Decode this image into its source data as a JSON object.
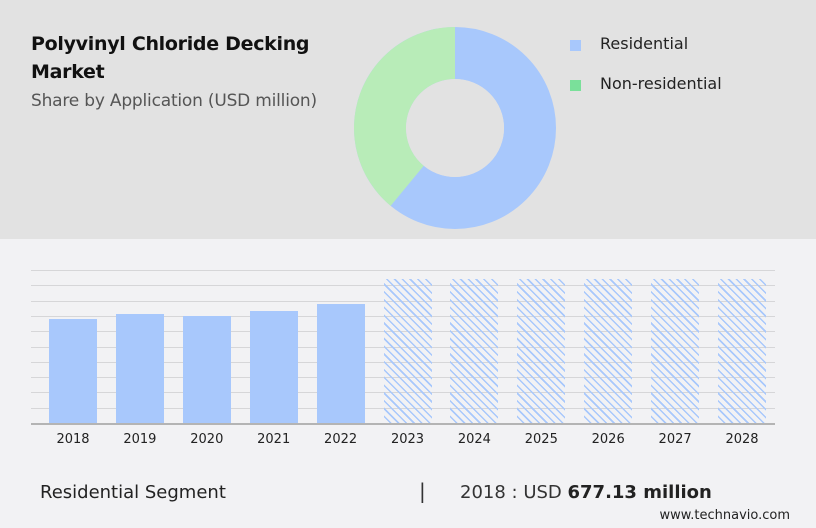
{
  "header": {
    "title_line1": "Polyvinyl Chloride Decking",
    "title_line2": "Market",
    "subtitle": "Share by Application (USD million)"
  },
  "colors": {
    "residential": "#a8c8fc",
    "non_residential_slice": "#b8ecb8",
    "non_residential_legend": "#7ae09a",
    "top_panel_bg": "#e2e2e2",
    "page_bg": "#f2f2f4"
  },
  "legend": {
    "items": [
      {
        "label": "Residential",
        "color": "#a8c8fc"
      },
      {
        "label": "Non-residential",
        "color": "#7ae09a"
      }
    ]
  },
  "footer": {
    "segment_label": "Residential Segment",
    "separator": "|",
    "value_prefix": "2018 : USD ",
    "value_bold": "677.13 million",
    "source": "www.technavio.com"
  },
  "chart_data": [
    {
      "type": "pie",
      "title": "Share by Application (USD million)",
      "variant": "donut",
      "categories": [
        "Residential",
        "Non-residential"
      ],
      "values": [
        61,
        39
      ],
      "unit": "approx. % share",
      "legend_position": "right"
    },
    {
      "type": "bar",
      "title": "Residential Segment",
      "categories": [
        "2018",
        "2019",
        "2020",
        "2021",
        "2022",
        "2023",
        "2024",
        "2025",
        "2026",
        "2027",
        "2028"
      ],
      "values": [
        677.13,
        710,
        697,
        729,
        775,
        null,
        null,
        null,
        null,
        null,
        null
      ],
      "forecast_categories": [
        "2023",
        "2024",
        "2025",
        "2026",
        "2027",
        "2028"
      ],
      "forecast_style": "hatched, values not shown",
      "xlabel": "",
      "ylabel": "USD million",
      "annotation": "2018 : USD 677.13 million",
      "grid": true,
      "y_axis_labels_visible": false
    }
  ]
}
